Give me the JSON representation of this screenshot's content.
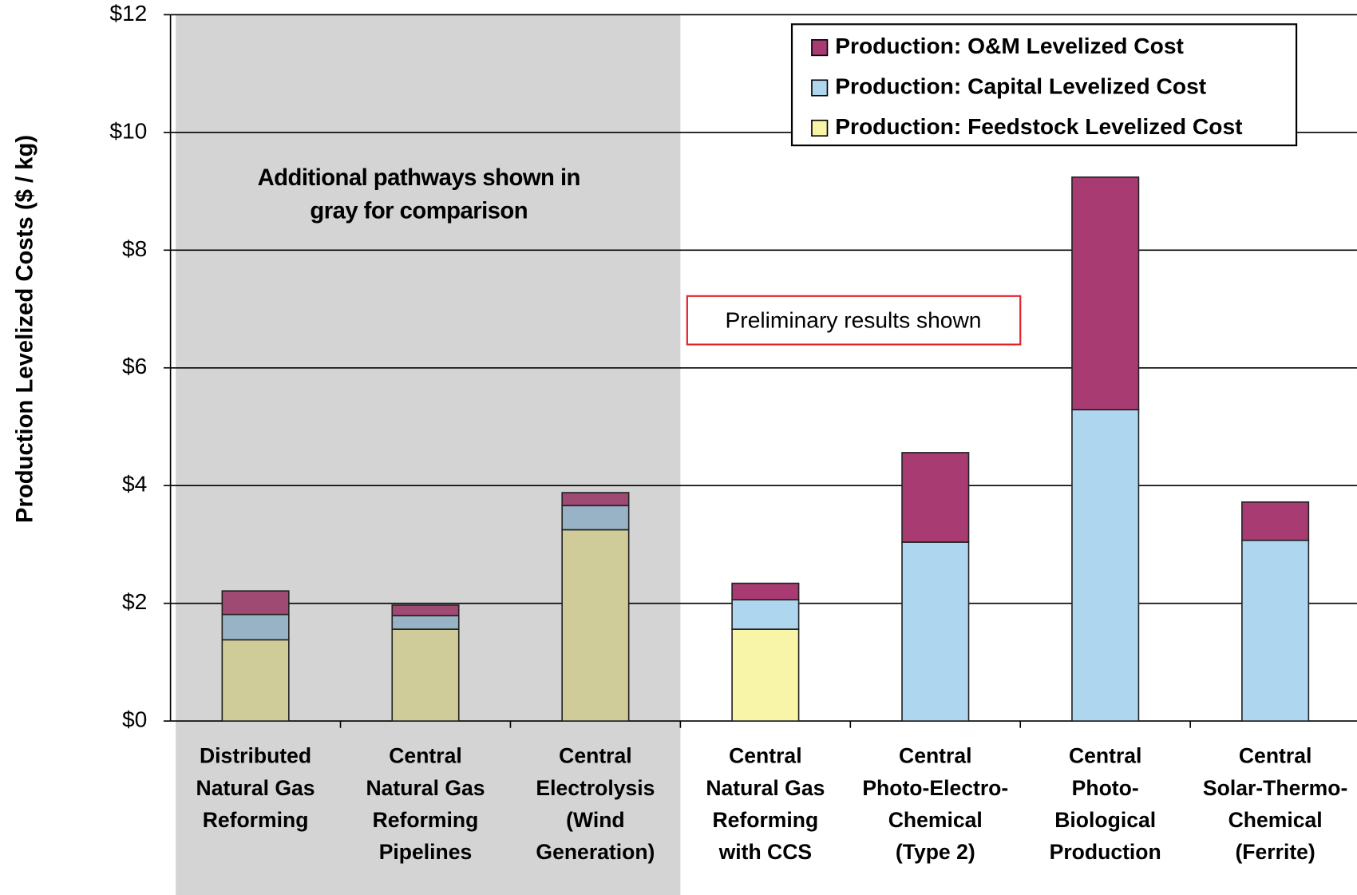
{
  "chart_data": {
    "type": "stacked_bar",
    "y_axis_label": "Production Levelized Costs ($ / kg)",
    "categories": [
      [
        "Distributed",
        "Natural Gas",
        "Reforming"
      ],
      [
        "Central",
        "Natural Gas",
        "Reforming",
        "Pipelines"
      ],
      [
        "Central",
        "Electrolysis",
        "(Wind",
        "Generation)"
      ],
      [
        "Central",
        "Natural Gas",
        "Reforming",
        "with CCS"
      ],
      [
        "Central",
        "Photo-Electro-",
        "Chemical",
        "(Type 2)"
      ],
      [
        "Central",
        "Photo-",
        "Biological",
        "Production"
      ],
      [
        "Central",
        "Solar-Thermo-",
        "Chemical",
        "(Ferrite)"
      ]
    ],
    "series": [
      {
        "name": "Production: O&M Levelized Cost",
        "color": "#a83c72",
        "muted_color": "#9e4a72",
        "values": [
          0.4,
          0.18,
          0.22,
          0.28,
          1.52,
          3.95,
          0.65
        ]
      },
      {
        "name": "Production: Capital Levelized Cost",
        "color": "#aed6ef",
        "muted_color": "#98b3c6",
        "values": [
          0.43,
          0.23,
          0.41,
          0.5,
          3.04,
          5.29,
          3.07
        ]
      },
      {
        "name": "Production: Feedstock Levelized Cost",
        "color": "#f8f4a8",
        "muted_color": "#cfcc9a",
        "values": [
          1.38,
          1.56,
          3.25,
          1.56,
          0,
          0,
          0
        ]
      }
    ],
    "shaded_categories": [
      0,
      1,
      2
    ],
    "annotations": [
      [
        "Additional pathways shown in",
        "gray for comparison"
      ],
      "Preliminary results shown"
    ],
    "ylim": [
      0,
      12
    ],
    "yticks": [
      {
        "value": 0,
        "label": "$0"
      },
      {
        "value": 2,
        "label": "$2"
      },
      {
        "value": 4,
        "label": "$4"
      },
      {
        "value": 6,
        "label": "$6"
      },
      {
        "value": 8,
        "label": "$8"
      },
      {
        "value": 10,
        "label": "$10"
      },
      {
        "value": 12,
        "label": "$12"
      }
    ],
    "grid": true
  }
}
